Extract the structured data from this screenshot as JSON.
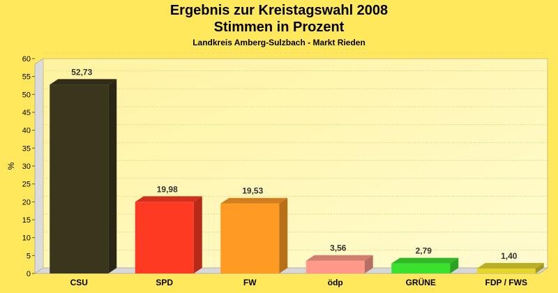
{
  "chart_data": {
    "type": "bar",
    "title": "Ergebnis zur Kreistagswahl 2008",
    "subtitle": "Stimmen in Prozent",
    "caption": "Landkreis Amberg-Sulzbach - Markt Rieden",
    "ylabel": "%",
    "xlabel": "",
    "ylim": [
      0,
      60
    ],
    "yticks": [
      0,
      5,
      10,
      15,
      20,
      25,
      30,
      35,
      40,
      45,
      50,
      55,
      60
    ],
    "categories": [
      "CSU",
      "SPD",
      "FW",
      "ödp",
      "GRÜNE",
      "FDP / FWS"
    ],
    "values": [
      52.73,
      19.98,
      19.53,
      3.56,
      2.79,
      1.4
    ],
    "value_labels": [
      "52,73",
      "19,98",
      "19,53",
      "3,56",
      "2,79",
      "1,40"
    ],
    "colors": [
      "#3a361c",
      "#ff3a22",
      "#ff9b22",
      "#ff9a8a",
      "#3ae22e",
      "#e4d62e"
    ],
    "grid": true,
    "legend": "none"
  }
}
